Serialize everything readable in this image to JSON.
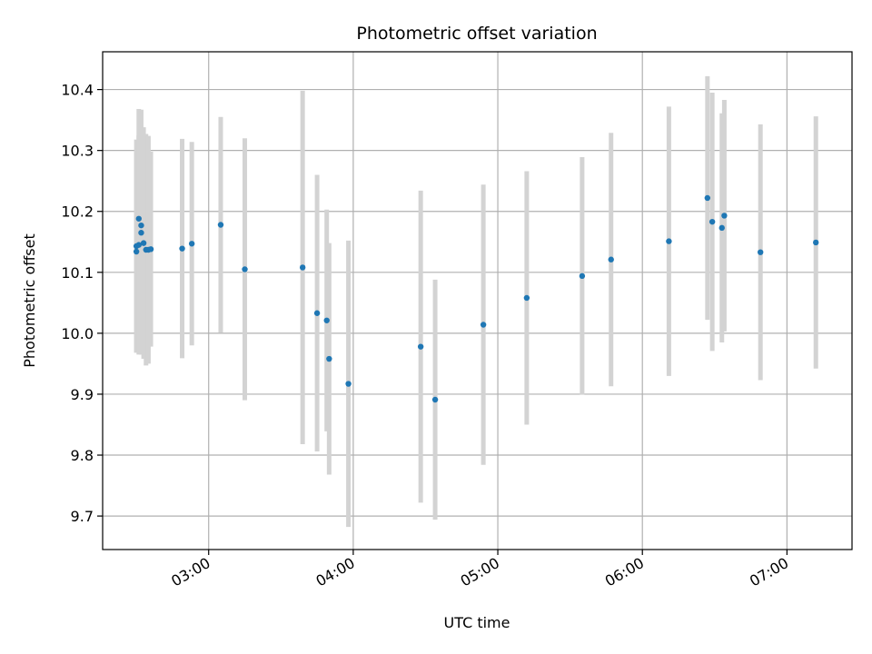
{
  "chart_data": {
    "type": "scatter",
    "title": "Photometric offset variation",
    "xlabel": "UTC time",
    "ylabel": "Photometric offset",
    "x_unit": "time (HH:MM, UTC)",
    "xlim": [
      "02:16",
      "07:27"
    ],
    "ylim": [
      9.645,
      10.462
    ],
    "x_ticks": [
      "03:00",
      "04:00",
      "05:00",
      "06:00",
      "07:00"
    ],
    "y_ticks": [
      9.7,
      9.8,
      9.9,
      10.0,
      10.1,
      10.2,
      10.3,
      10.4
    ],
    "grid": true,
    "legend": "none",
    "colors": {
      "marker": "#1f77b4",
      "error_bar": "#d3d3d3",
      "grid": "#b0b0b0"
    },
    "series": [
      {
        "points": [
          {
            "x": "02:30",
            "y": 10.134,
            "err": 0.165
          },
          {
            "x": "02:30",
            "y": 10.143,
            "err": 0.175
          },
          {
            "x": "02:31",
            "y": 10.145,
            "err": 0.18
          },
          {
            "x": "02:31",
            "y": 10.188,
            "err": 0.18
          },
          {
            "x": "02:32",
            "y": 10.177,
            "err": 0.19
          },
          {
            "x": "02:32",
            "y": 10.165,
            "err": 0.2
          },
          {
            "x": "02:33",
            "y": 10.148,
            "err": 0.19
          },
          {
            "x": "02:34",
            "y": 10.137,
            "err": 0.19
          },
          {
            "x": "02:35",
            "y": 10.137,
            "err": 0.187
          },
          {
            "x": "02:36",
            "y": 10.138,
            "err": 0.16
          },
          {
            "x": "02:49",
            "y": 10.139,
            "err": 0.18
          },
          {
            "x": "02:53",
            "y": 10.147,
            "err": 0.167
          },
          {
            "x": "03:05",
            "y": 10.178,
            "err": 0.177
          },
          {
            "x": "03:15",
            "y": 10.105,
            "err": 0.215
          },
          {
            "x": "03:39",
            "y": 10.108,
            "err": 0.29
          },
          {
            "x": "03:45",
            "y": 10.033,
            "err": 0.227
          },
          {
            "x": "03:49",
            "y": 10.021,
            "err": 0.182
          },
          {
            "x": "03:50",
            "y": 9.958,
            "err": 0.19
          },
          {
            "x": "03:58",
            "y": 9.917,
            "err": 0.235
          },
          {
            "x": "04:28",
            "y": 9.978,
            "err": 0.256
          },
          {
            "x": "04:34",
            "y": 9.891,
            "err": 0.197
          },
          {
            "x": "04:54",
            "y": 10.014,
            "err": 0.23
          },
          {
            "x": "05:12",
            "y": 10.058,
            "err": 0.208
          },
          {
            "x": "05:35",
            "y": 10.094,
            "err": 0.195
          },
          {
            "x": "05:47",
            "y": 10.121,
            "err": 0.208
          },
          {
            "x": "06:11",
            "y": 10.151,
            "err": 0.221
          },
          {
            "x": "06:27",
            "y": 10.222,
            "err": 0.2
          },
          {
            "x": "06:29",
            "y": 10.183,
            "err": 0.212
          },
          {
            "x": "06:33",
            "y": 10.173,
            "err": 0.188
          },
          {
            "x": "06:34",
            "y": 10.193,
            "err": 0.19
          },
          {
            "x": "06:49",
            "y": 10.133,
            "err": 0.21
          },
          {
            "x": "07:12",
            "y": 10.149,
            "err": 0.207
          }
        ]
      }
    ]
  }
}
